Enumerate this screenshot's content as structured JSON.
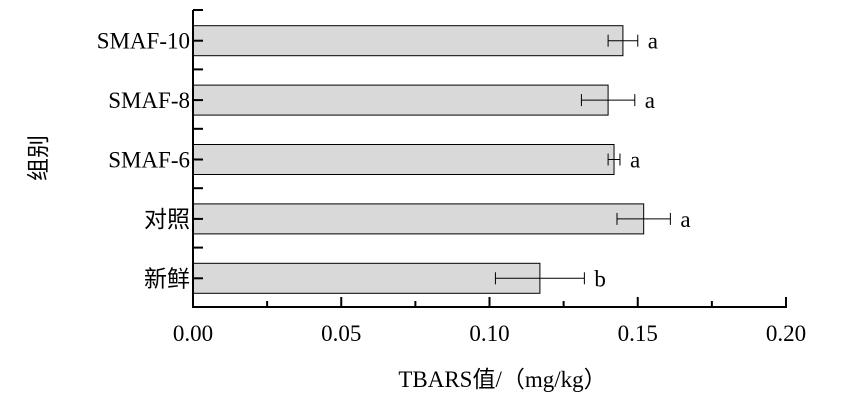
{
  "chart_data": {
    "type": "bar",
    "orientation": "horizontal",
    "categories": [
      "SMAF-10",
      "SMAF-8",
      "SMAF-6",
      "对照",
      "新鲜"
    ],
    "values": [
      0.145,
      0.14,
      0.142,
      0.152,
      0.117
    ],
    "errors": [
      0.005,
      0.009,
      0.002,
      0.009,
      0.015
    ],
    "significance": [
      "a",
      "a",
      "a",
      "a",
      "b"
    ],
    "xlabel": "TBARS值/（mg/kg）",
    "ylabel": "组别",
    "xlim": [
      0,
      0.2
    ],
    "xticks": [
      "0.00",
      "0.05",
      "0.10",
      "0.15",
      "0.20"
    ],
    "grid": false,
    "bar_color": "#d9d9d9",
    "bar_edge_color": "#000000"
  }
}
